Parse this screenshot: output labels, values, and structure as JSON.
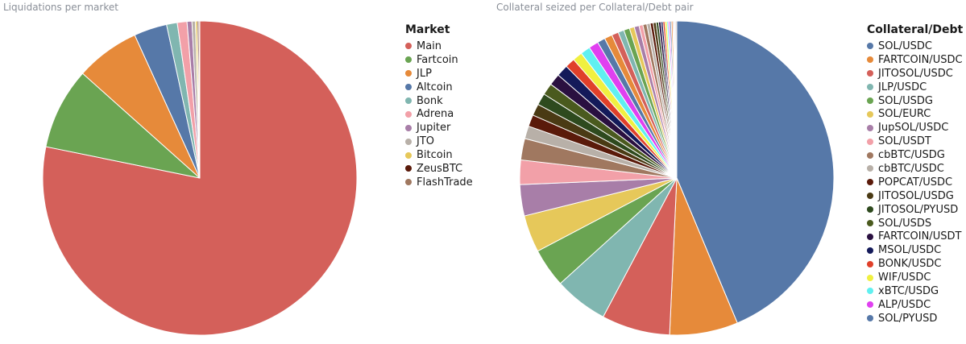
{
  "chart_data": [
    {
      "type": "pie",
      "title": "Liquidations per market",
      "legend_title": "Market",
      "legend_position": "right",
      "slices": [
        {
          "label": "Main",
          "value": 78.2,
          "color": "#d4605a"
        },
        {
          "label": "Fartcoin",
          "value": 8.4,
          "color": "#6aa452"
        },
        {
          "label": "JLP",
          "value": 6.6,
          "color": "#e68a3a"
        },
        {
          "label": "Altcoin",
          "value": 3.4,
          "color": "#5678a8"
        },
        {
          "label": "Bonk",
          "value": 1.1,
          "color": "#80b6b0"
        },
        {
          "label": "Adrena",
          "value": 1.0,
          "color": "#f2a0a8"
        },
        {
          "label": "Jupiter",
          "value": 0.5,
          "color": "#a87ea8"
        },
        {
          "label": "JTO",
          "value": 0.35,
          "color": "#b8b0a8"
        },
        {
          "label": "Bitcoin",
          "value": 0.2,
          "color": "#e6c85a"
        },
        {
          "label": "ZeusBTC",
          "value": 0.15,
          "color": "#5a1a0a"
        },
        {
          "label": "FlashTrade",
          "value": 0.1,
          "color": "#a07860"
        }
      ]
    },
    {
      "type": "pie",
      "title": "Collateral seized per Collateral/Debt pair",
      "legend_title": "Collateral/Debt",
      "legend_position": "right",
      "slices": [
        {
          "label": "SOL/USDC",
          "value": 43.5,
          "color": "#5678a8"
        },
        {
          "label": "FARTCOIN/USDC",
          "value": 7.0,
          "color": "#e68a3a"
        },
        {
          "label": "JITOSOL/USDC",
          "value": 7.0,
          "color": "#d4605a"
        },
        {
          "label": "JLP/USDC",
          "value": 5.5,
          "color": "#80b6b0"
        },
        {
          "label": "SOL/USDG",
          "value": 4.0,
          "color": "#6aa452"
        },
        {
          "label": "SOL/EURC",
          "value": 3.8,
          "color": "#e6c85a"
        },
        {
          "label": "JupSOL/USDC",
          "value": 3.2,
          "color": "#a87ea8"
        },
        {
          "label": "SOL/USDT",
          "value": 2.5,
          "color": "#f2a0a8"
        },
        {
          "label": "cbBTC/USDG",
          "value": 2.2,
          "color": "#a07860"
        },
        {
          "label": "cbBTC/USDC",
          "value": 1.3,
          "color": "#b8b0a8"
        },
        {
          "label": "POPCAT/USDC",
          "value": 1.2,
          "color": "#5a1a0a"
        },
        {
          "label": "JITOSOL/USDG",
          "value": 1.2,
          "color": "#4a3a14"
        },
        {
          "label": "JITOSOL/PYUSD",
          "value": 1.2,
          "color": "#2e4a1e"
        },
        {
          "label": "SOL/USDS",
          "value": 1.2,
          "color": "#4a5a1e"
        },
        {
          "label": "FARTCOIN/USDT",
          "value": 1.2,
          "color": "#2a1040"
        },
        {
          "label": "MSOL/USDC",
          "value": 1.2,
          "color": "#141a5a"
        },
        {
          "label": "BONK/USDC",
          "value": 1.0,
          "color": "#e0402a"
        },
        {
          "label": "WIF/USDC",
          "value": 1.0,
          "color": "#f0f040"
        },
        {
          "label": "xBTC/USDG",
          "value": 1.0,
          "color": "#60f0f0"
        },
        {
          "label": "ALP/USDC",
          "value": 1.0,
          "color": "#e040f0"
        },
        {
          "label": "SOL/PYUSD",
          "value": 0.8,
          "color": "#5678a8"
        }
      ],
      "other_slices": [
        {
          "value": 0.8,
          "color": "#e68a3a"
        },
        {
          "value": 0.7,
          "color": "#d4605a"
        },
        {
          "value": 0.6,
          "color": "#80b6b0"
        },
        {
          "value": 0.6,
          "color": "#6aa452"
        },
        {
          "value": 0.5,
          "color": "#e6c85a"
        },
        {
          "value": 0.5,
          "color": "#a87ea8"
        },
        {
          "value": 0.4,
          "color": "#f2a0a8"
        },
        {
          "value": 0.4,
          "color": "#a07860"
        },
        {
          "value": 0.35,
          "color": "#b8b0a8"
        },
        {
          "value": 0.3,
          "color": "#5a1a0a"
        },
        {
          "value": 0.3,
          "color": "#4a3a14"
        },
        {
          "value": 0.25,
          "color": "#2e4a1e"
        },
        {
          "value": 0.25,
          "color": "#2a1040"
        },
        {
          "value": 0.2,
          "color": "#141a5a"
        },
        {
          "value": 0.2,
          "color": "#e0402a"
        },
        {
          "value": 0.2,
          "color": "#f0f040"
        },
        {
          "value": 0.15,
          "color": "#60f0f0"
        },
        {
          "value": 0.15,
          "color": "#e040f0"
        },
        {
          "value": 0.15,
          "color": "#5678a8"
        },
        {
          "value": 0.15,
          "color": "#e68a3a"
        },
        {
          "value": 0.1,
          "color": "#d4605a"
        },
        {
          "value": 0.1,
          "color": "#80b6b0"
        },
        {
          "value": 0.1,
          "color": "#a87ea8"
        },
        {
          "value": 0.1,
          "color": "#a07860"
        }
      ]
    }
  ]
}
